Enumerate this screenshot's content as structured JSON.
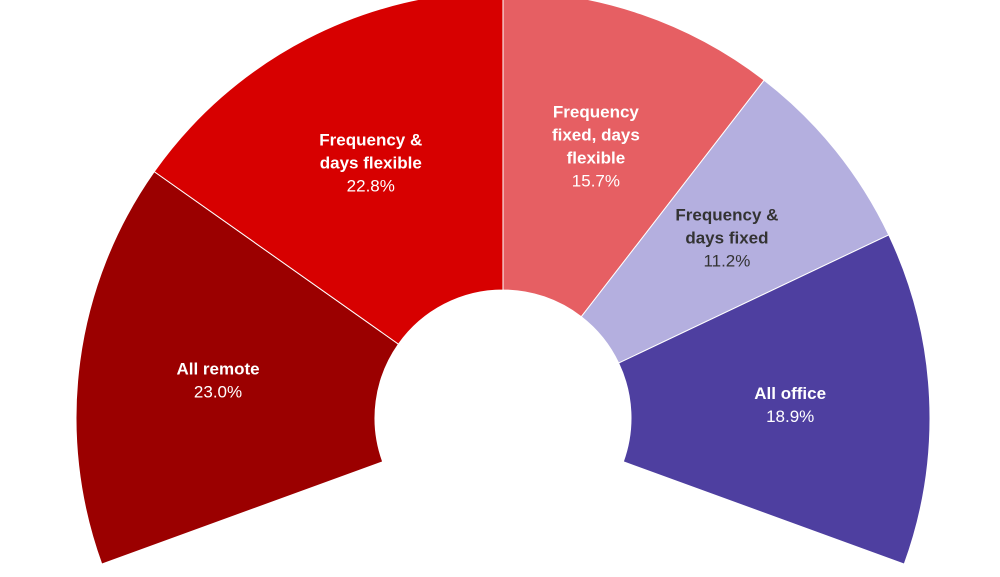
{
  "chart_data": {
    "type": "pie",
    "style": "half-donut",
    "title": "",
    "segments": [
      {
        "label_lines": [
          "All remote"
        ],
        "value": 23.0,
        "value_label": "23.0%",
        "color": "#9b0000",
        "text_color": "#ffffff",
        "value_color": "#ffffff"
      },
      {
        "label_lines": [
          "Frequency &",
          "days flexible"
        ],
        "value": 22.8,
        "value_label": "22.8%",
        "color": "#d70000",
        "text_color": "#ffffff",
        "value_color": "#ffffff"
      },
      {
        "label_lines": [
          "Frequency",
          "fixed, days",
          "flexible"
        ],
        "value": 15.7,
        "value_label": "15.7%",
        "color": "#e65f63",
        "text_color": "#ffffff",
        "value_color": "#ffffff"
      },
      {
        "label_lines": [
          "Frequency &",
          "days fixed"
        ],
        "value": 11.2,
        "value_label": "11.2%",
        "color": "#b4afdf",
        "text_color": "#333333",
        "value_color": "#333333"
      },
      {
        "label_lines": [
          "All office"
        ],
        "value": 18.9,
        "value_label": "18.9%",
        "color": "#4e3fa0",
        "text_color": "#ffffff",
        "value_color": "#ffffff"
      }
    ]
  }
}
